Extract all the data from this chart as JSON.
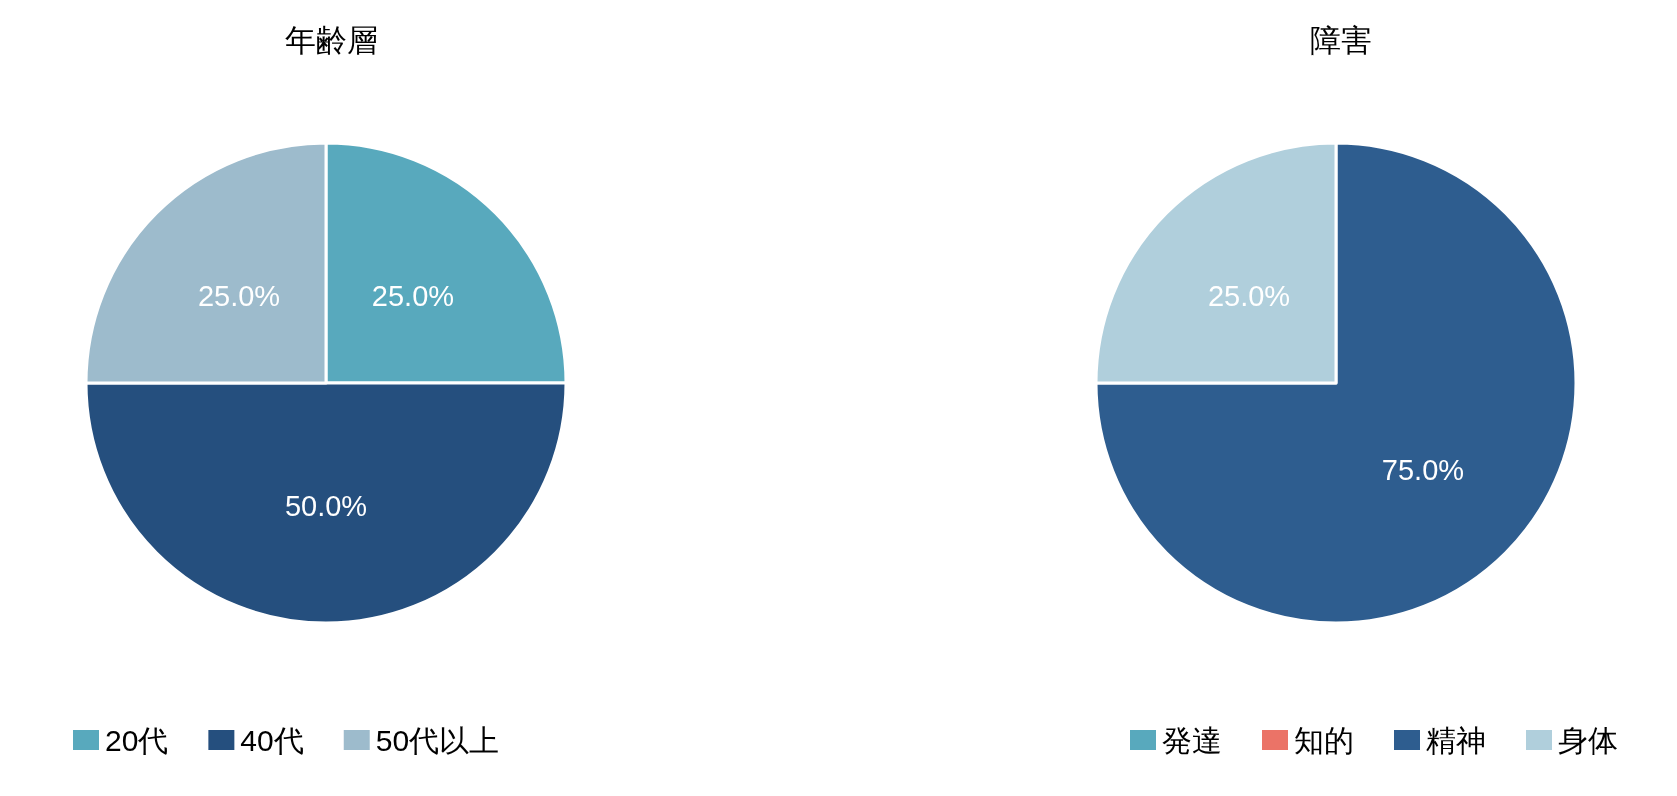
{
  "chart_data": [
    {
      "type": "pie",
      "title": "年齢層",
      "categories": [
        "20代",
        "40代",
        "50代以上"
      ],
      "values": [
        25,
        50,
        25
      ],
      "colors": [
        "#58a9bd",
        "#254f7e",
        "#9dbbcc"
      ],
      "value_labels": [
        "25.0%",
        "50.0%",
        "25.0%"
      ],
      "legend": "bottom left"
    },
    {
      "type": "pie",
      "title": "障害",
      "categories": [
        "発達",
        "知的",
        "精神",
        "身体"
      ],
      "values": [
        0,
        0,
        75,
        25
      ],
      "colors": [
        "#58a9bd",
        "#eb7367",
        "#2e5d8f",
        "#b0cfdc"
      ],
      "value_labels": [
        null,
        null,
        "75.0%",
        "25.0%"
      ],
      "legend": "bottom right"
    }
  ]
}
